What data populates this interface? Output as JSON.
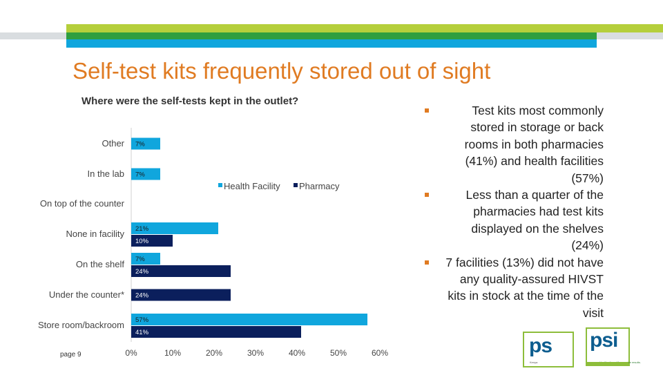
{
  "slide": {
    "title": "Self-test kits frequently stored out of sight",
    "page_label": "page 9"
  },
  "chart_data": {
    "type": "bar",
    "orientation": "horizontal",
    "title": "Where were the self-tests kept in the outlet?",
    "categories": [
      "Other",
      "In the lab",
      "On top of the counter",
      "None in facility",
      "On the shelf",
      "Under the counter*",
      "Store room/backroom"
    ],
    "series": [
      {
        "name": "Health Facility",
        "color": "#10a6dd",
        "values": [
          7,
          7,
          null,
          21,
          7,
          null,
          57
        ],
        "labels": [
          "7%",
          "7%",
          "",
          "21%",
          "7%",
          "",
          "57%"
        ]
      },
      {
        "name": "Pharmacy",
        "color": "#0b1f5c",
        "values": [
          null,
          null,
          null,
          10,
          24,
          24,
          41
        ],
        "labels": [
          "",
          "",
          "",
          "10%",
          "24%",
          "24%",
          "41%"
        ]
      }
    ],
    "x_ticks": [
      "0%",
      "10%",
      "20%",
      "30%",
      "40%",
      "50%",
      "60%"
    ],
    "xlim": [
      0,
      60
    ],
    "legend_position": "middle-right",
    "grid": false
  },
  "bullets": [
    "Test kits most commonly stored in storage or back rooms in both pharmacies (41%) and health facilities (57%)",
    "Less than a quarter of the pharmacies had test kits displayed on the shelves (24%)",
    "7 facilities (13%) did not have any quality-assured HIVST kits in stock at the time of the visit"
  ],
  "logos": {
    "ps": {
      "name": "ps",
      "tagline": "Kenya"
    },
    "psi": {
      "name": "psi",
      "tagline": "Healthy lives. Measurable results."
    }
  }
}
